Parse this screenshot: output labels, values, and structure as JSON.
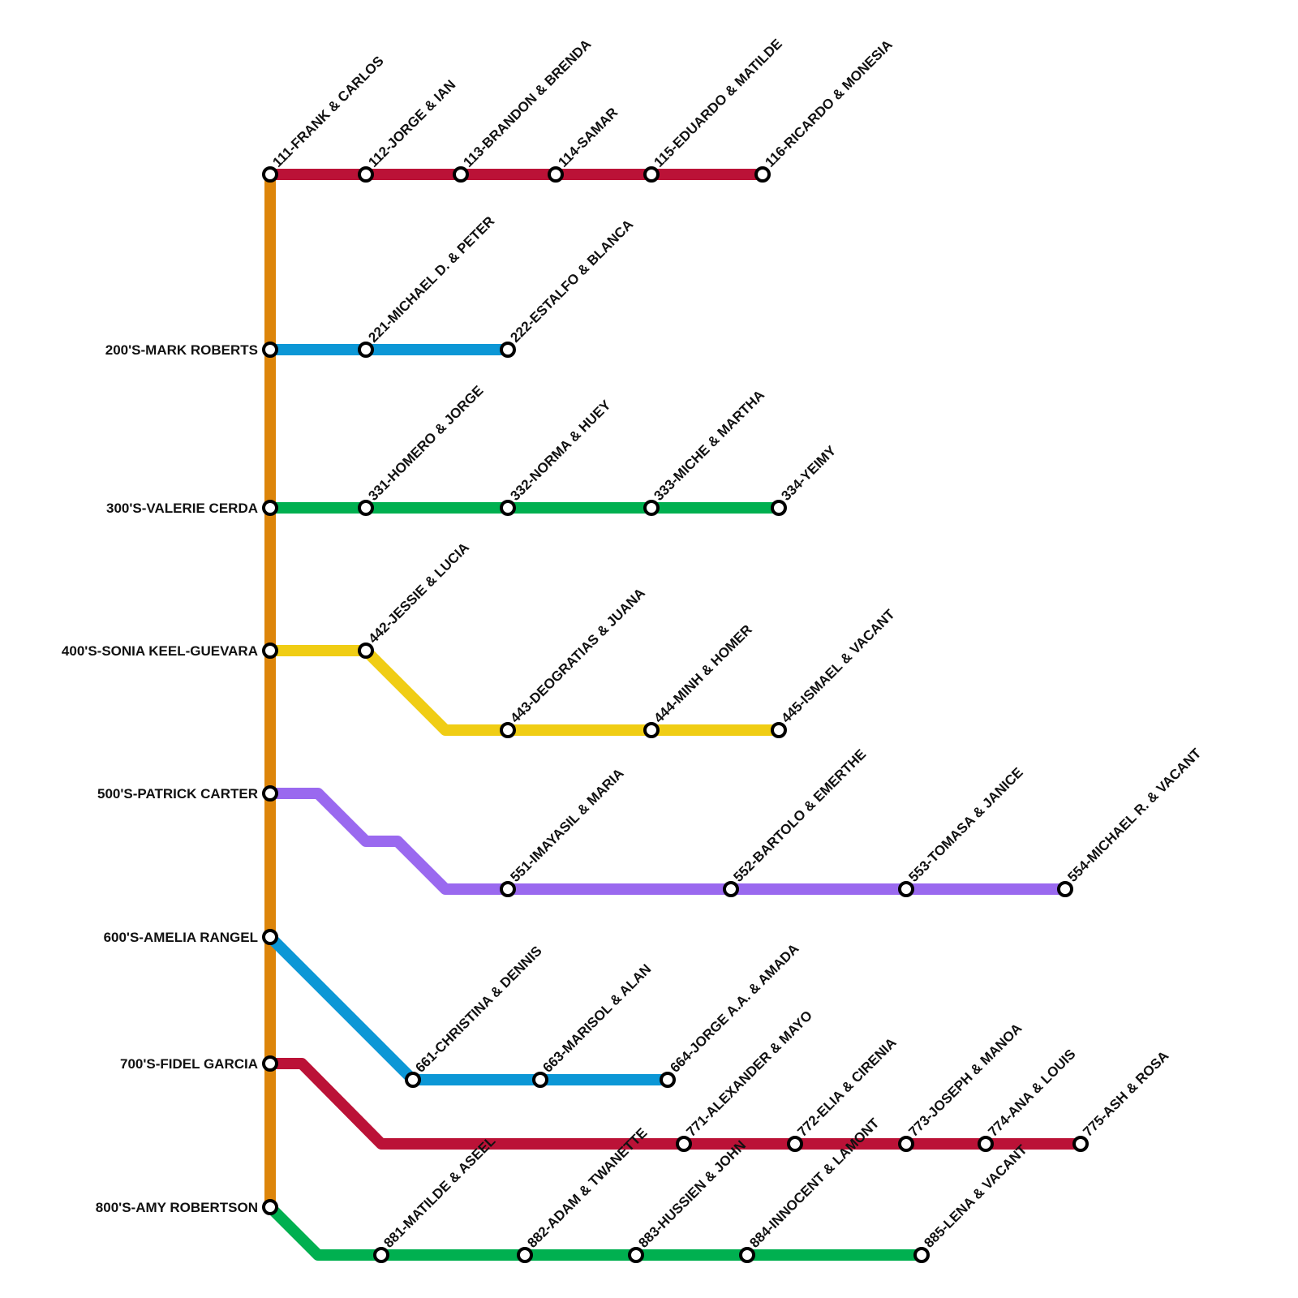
{
  "lines": [
    {
      "stations": [
        "111-FRANK & CARLOS",
        "112-JORGE & IAN",
        "113-BRANDON & BRENDA",
        "114-SAMAR",
        "115-EDUARDO & MATILDE",
        "116-RICARDO & MONESIA"
      ]
    },
    {
      "hub": "200'S-MARK ROBERTS",
      "stations": [
        "221-MICHAEL D. & PETER",
        "222-ESTALFO & BLANCA"
      ]
    },
    {
      "hub": "300'S-VALERIE CERDA",
      "stations": [
        "331-HOMERO & JORGE",
        "332-NORMA & HUEY",
        "333-MICHE & MARTHA",
        "334-YEIMY"
      ]
    },
    {
      "hub": "400'S-SONIA KEEL-GUEVARA",
      "stations": [
        "442-JESSIE & LUCIA",
        "443-DEOGRATIAS & JUANA",
        "444-MINH & HOMER",
        "445-ISMAEL & VACANT"
      ]
    },
    {
      "hub": "500'S-PATRICK CARTER",
      "stations": [
        "551-IMAYASIL & MARIA",
        "552-BARTOLO & EMERTHE",
        "553-TOMASA & JANICE",
        "554-MICHAEL R. & VACANT"
      ]
    },
    {
      "hub": "600'S-AMELIA RANGEL",
      "stations": [
        "661-CHRISTINA & DENNIS",
        "663-MARISOL & ALAN",
        "664-JORGE A.A. & AMADA"
      ]
    },
    {
      "hub": "700'S-FIDEL GARCIA",
      "stations": [
        "771-ALEXANDER & MAYO",
        "772-ELIA & CIRENIA",
        "773-JOSEPH & MANOA",
        "774-ANA & LOUIS",
        "775-ASH & ROSA"
      ]
    },
    {
      "hub": "800'S-AMY ROBERTSON",
      "stations": [
        "881-MATILDE & ASEEL",
        "882-ADAM & TWANETTE",
        "883-HUSSIEN & JOHN",
        "884-INNOCENT & LAMONT",
        "885-LENA & VACANT"
      ]
    }
  ]
}
